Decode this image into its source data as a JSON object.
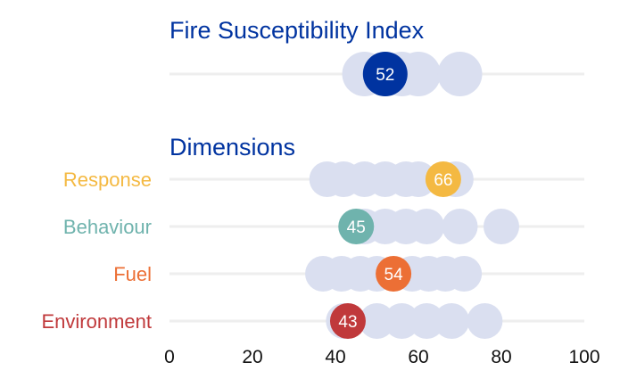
{
  "chart_data": {
    "type": "scatter",
    "title": "Fire Susceptibility Index",
    "section_title": "Dimensions",
    "xlim": [
      0,
      100
    ],
    "xticks": [
      0,
      20,
      40,
      60,
      80,
      100
    ],
    "grid": true,
    "background_color": "#dadff0",
    "index": {
      "name": "Fire Susceptibility Index",
      "value": 52,
      "label": "52",
      "color": "#0033a0",
      "others": [
        47,
        52,
        56,
        60,
        70
      ]
    },
    "dimensions": [
      {
        "name": "Response",
        "value": 66,
        "label": "66",
        "color": "#f4b942",
        "others": [
          38,
          42,
          47,
          52,
          57,
          60,
          69
        ]
      },
      {
        "name": "Behaviour",
        "value": 45,
        "label": "45",
        "color": "#6fb3ad",
        "others": [
          47,
          52,
          57,
          62,
          70,
          80
        ]
      },
      {
        "name": "Fuel",
        "value": 54,
        "label": "54",
        "color": "#ec6f35",
        "others": [
          37,
          41.5,
          46,
          50,
          58.5,
          62.5,
          66.5,
          71
        ]
      },
      {
        "name": "Environment",
        "value": 43,
        "label": "43",
        "color": "#c0393b",
        "others": [
          42,
          50,
          56,
          62,
          68,
          76
        ]
      }
    ]
  }
}
